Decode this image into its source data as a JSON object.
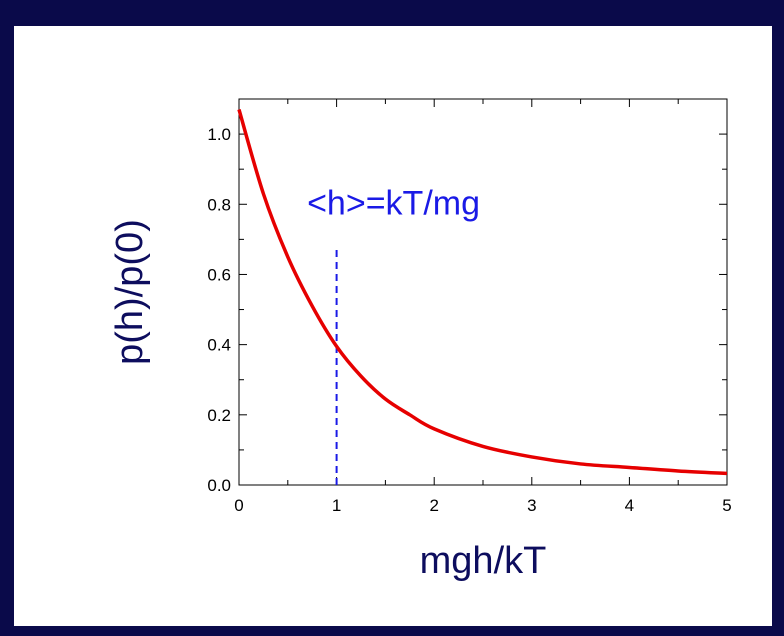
{
  "chart_data": {
    "type": "line",
    "title": "",
    "xlabel": "mgh/kT",
    "ylabel": "p(h)/p(0)",
    "xlim": [
      0,
      5
    ],
    "ylim": [
      0,
      1.1
    ],
    "x_ticks": [
      "0",
      "1",
      "2",
      "3",
      "4",
      "5"
    ],
    "y_ticks": [
      "0.0",
      "0.2",
      "0.4",
      "0.6",
      "0.8",
      "1.0"
    ],
    "grid": false,
    "series": [
      {
        "color": "#e60000",
        "x": [
          0,
          0.25,
          0.5,
          0.75,
          1,
          1.25,
          1.5,
          1.75,
          2,
          2.5,
          3,
          3.5,
          4,
          4.5,
          5
        ],
        "y": [
          1.07,
          0.83,
          0.65,
          0.51,
          0.395,
          0.31,
          0.245,
          0.2,
          0.16,
          0.11,
          0.08,
          0.06,
          0.05,
          0.04,
          0.033
        ]
      }
    ],
    "annotations": [
      {
        "text": "<h>=kT/mg",
        "x": 1,
        "y_line_top": 0.68,
        "line_style": "dashed",
        "color": "#1a1ae6"
      }
    ]
  },
  "colors": {
    "background": "#0a0a4a",
    "plot_background": "#ffffff",
    "axis_title": "#0d0d5e",
    "annotation": "#1a1ae6",
    "curve": "#e60000"
  }
}
